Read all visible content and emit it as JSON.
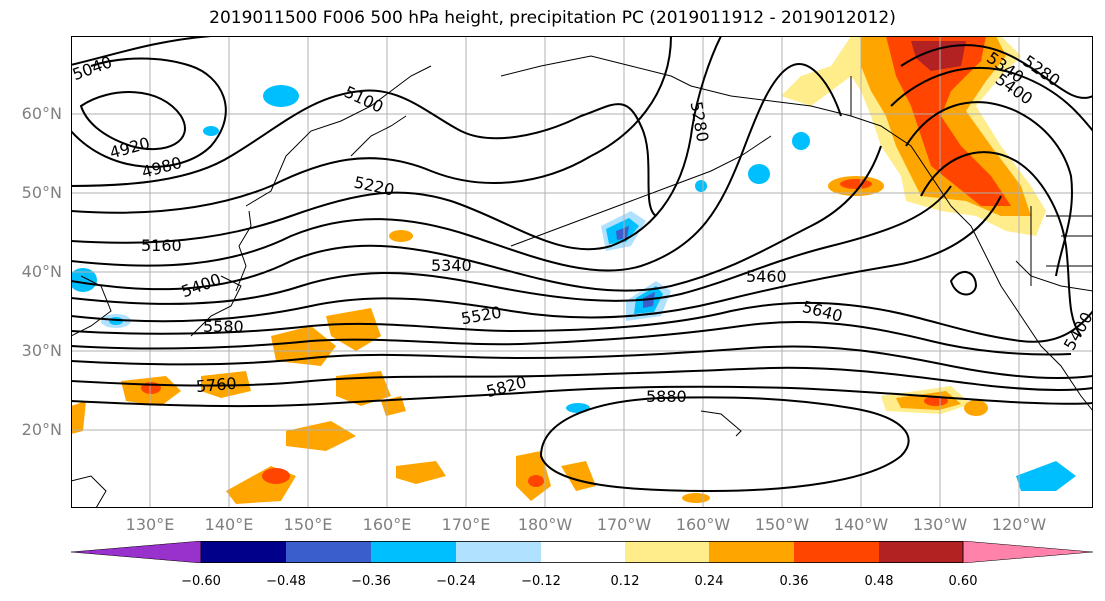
{
  "title": "2019011500 F006 500 hPa height, precipitation PC (2019011912 - 2019012012)",
  "map": {
    "lat_labels": [
      "60°N",
      "50°N",
      "40°N",
      "30°N",
      "20°N"
    ],
    "lon_labels": [
      "130°E",
      "140°E",
      "150°E",
      "160°E",
      "170°E",
      "180°W",
      "170°W",
      "160°W",
      "150°W",
      "140°W",
      "130°W",
      "120°W"
    ],
    "contour_labels": [
      "5040",
      "4920",
      "4980",
      "5100",
      "5220",
      "5280",
      "5160",
      "5400",
      "5340",
      "5460",
      "5520",
      "5580",
      "5640",
      "5760",
      "5820",
      "5880",
      "5280",
      "5340",
      "5400",
      "5400"
    ],
    "colors": {
      "contour": "#000000",
      "gridline": "#b0b0b0",
      "coast": "#000000"
    }
  },
  "colorbar": {
    "ticks": [
      "−0.60",
      "−0.48",
      "−0.36",
      "−0.24",
      "−0.12",
      "0.12",
      "0.24",
      "0.36",
      "0.48",
      "0.60"
    ],
    "colors": [
      "#9932cc",
      "#00008b",
      "#3a5fcd",
      "#00bfff",
      "#b0e2ff",
      "#ffffff",
      "#ffec8b",
      "#ffa500",
      "#ff4500",
      "#b22222",
      "#ff82ab"
    ]
  }
}
